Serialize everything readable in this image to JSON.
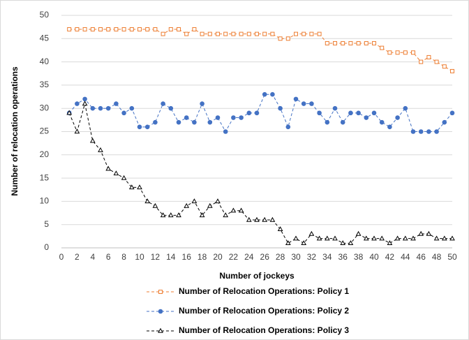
{
  "chart_data": {
    "type": "line",
    "x_label": "Number of jockeys",
    "y_label": "Number of relocation operations",
    "x": [
      1,
      2,
      3,
      4,
      5,
      6,
      7,
      8,
      9,
      10,
      11,
      12,
      13,
      14,
      15,
      16,
      17,
      18,
      19,
      20,
      21,
      22,
      23,
      24,
      25,
      26,
      27,
      28,
      29,
      30,
      31,
      32,
      33,
      34,
      35,
      36,
      37,
      38,
      39,
      40,
      41,
      42,
      43,
      44,
      45,
      46,
      47,
      48,
      49,
      50
    ],
    "series": [
      {
        "name": "Number of Relocation Operations: Policy 1",
        "color": "#ED7D31",
        "marker": "square",
        "values": [
          47,
          47,
          47,
          47,
          47,
          47,
          47,
          47,
          47,
          47,
          47,
          47,
          46,
          47,
          47,
          46,
          47,
          46,
          46,
          46,
          46,
          46,
          46,
          46,
          46,
          46,
          46,
          45,
          45,
          46,
          46,
          46,
          46,
          44,
          44,
          44,
          44,
          44,
          44,
          44,
          43,
          42,
          42,
          42,
          42,
          40,
          41,
          40,
          39,
          38
        ]
      },
      {
        "name": "Number of Relocation Operations: Policy 2",
        "color": "#4472C4",
        "marker": "circle",
        "values": [
          29,
          31,
          32,
          30,
          30,
          30,
          31,
          29,
          30,
          26,
          26,
          27,
          31,
          30,
          27,
          28,
          27,
          31,
          27,
          28,
          25,
          28,
          28,
          29,
          29,
          33,
          33,
          30,
          26,
          32,
          31,
          31,
          29,
          27,
          30,
          27,
          29,
          29,
          28,
          29,
          27,
          26,
          28,
          30,
          25,
          25,
          25,
          25,
          27,
          29
        ]
      },
      {
        "name": "Number of Relocation Operations: Policy 3",
        "color": "#000000",
        "marker": "triangle",
        "values": [
          29,
          25,
          31,
          23,
          21,
          17,
          16,
          15,
          13,
          13,
          10,
          9,
          7,
          7,
          7,
          9,
          10,
          7,
          9,
          10,
          7,
          8,
          8,
          6,
          6,
          6,
          6,
          4,
          1,
          2,
          1,
          3,
          2,
          2,
          2,
          1,
          1,
          3,
          2,
          2,
          2,
          1,
          2,
          2,
          2,
          3,
          3,
          2,
          2,
          2
        ]
      }
    ],
    "xlim": [
      0,
      50
    ],
    "xticks": [
      0,
      2,
      4,
      6,
      8,
      10,
      12,
      14,
      16,
      18,
      20,
      22,
      24,
      26,
      28,
      30,
      32,
      34,
      36,
      38,
      40,
      42,
      44,
      46,
      48,
      50
    ],
    "ylim": [
      0,
      50
    ],
    "yticks": [
      0,
      5,
      10,
      15,
      20,
      25,
      30,
      35,
      40,
      45,
      50
    ],
    "grid": true,
    "legend": "bottom"
  }
}
